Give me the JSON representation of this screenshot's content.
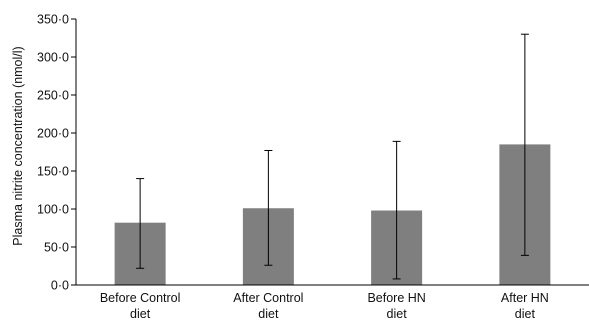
{
  "chart_data": {
    "type": "bar",
    "categories": [
      [
        "Before Control",
        "diet"
      ],
      [
        "After Control",
        "diet"
      ],
      [
        "Before HN",
        "diet"
      ],
      [
        "After HN",
        "diet"
      ]
    ],
    "values": [
      82,
      101,
      98,
      185
    ],
    "error_low": [
      22,
      26,
      8,
      39
    ],
    "error_high": [
      140,
      177,
      189,
      330
    ],
    "ylabel": "Plasma nitrite concentration (nmol/l)",
    "ylim": [
      0,
      350
    ],
    "yticks": [
      0,
      50,
      100,
      150,
      200,
      250,
      300,
      350
    ],
    "ytick_labels": [
      "0·0",
      "50·0",
      "100·0",
      "150·0",
      "200·0",
      "250·0",
      "300·0",
      "350·0"
    ],
    "grid": false,
    "bar_color": "#7f7f7f"
  }
}
